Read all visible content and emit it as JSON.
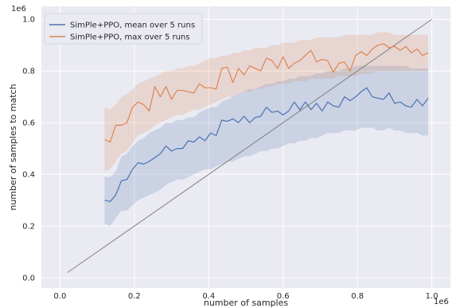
{
  "chart_data": {
    "type": "line",
    "xlabel": "number of samples",
    "ylabel": "number of samples to match",
    "x_offset_text": "1e6",
    "y_offset_text": "1e6",
    "xlim": [
      -0.05,
      1.05
    ],
    "ylim": [
      -0.04,
      1.05
    ],
    "x_ticks": [
      0.0,
      0.2,
      0.4,
      0.6,
      0.8,
      1.0
    ],
    "x_tick_labels": [
      "0.0",
      "0.2",
      "0.4",
      "0.6",
      "0.8",
      "1.0"
    ],
    "y_ticks": [
      0.0,
      0.2,
      0.4,
      0.6,
      0.8,
      1.0
    ],
    "y_tick_labels": [
      "0.0",
      "0.2",
      "0.4",
      "0.6",
      "0.8",
      "1.0"
    ],
    "grid": true,
    "legend_position": "top-left",
    "diagonal": {
      "x": [
        0.02,
        1.0
      ],
      "y": [
        0.02,
        1.0
      ],
      "color": "#808080"
    },
    "series": [
      {
        "name": "SimPle+PPO, mean over 5 runs",
        "color": "#4c72b0",
        "x": [
          0.12,
          0.135,
          0.15,
          0.165,
          0.18,
          0.195,
          0.21,
          0.225,
          0.24,
          0.255,
          0.27,
          0.285,
          0.3,
          0.315,
          0.33,
          0.345,
          0.36,
          0.375,
          0.39,
          0.405,
          0.42,
          0.435,
          0.45,
          0.465,
          0.48,
          0.495,
          0.51,
          0.525,
          0.54,
          0.555,
          0.57,
          0.585,
          0.6,
          0.615,
          0.63,
          0.645,
          0.66,
          0.675,
          0.69,
          0.705,
          0.72,
          0.735,
          0.75,
          0.765,
          0.78,
          0.795,
          0.81,
          0.825,
          0.84,
          0.855,
          0.87,
          0.885,
          0.9,
          0.915,
          0.93,
          0.945,
          0.96,
          0.975,
          0.99
        ],
        "y": [
          0.3,
          0.295,
          0.32,
          0.375,
          0.38,
          0.42,
          0.445,
          0.44,
          0.45,
          0.465,
          0.48,
          0.51,
          0.49,
          0.5,
          0.5,
          0.53,
          0.525,
          0.545,
          0.53,
          0.56,
          0.55,
          0.61,
          0.605,
          0.615,
          0.6,
          0.625,
          0.6,
          0.62,
          0.625,
          0.66,
          0.64,
          0.645,
          0.63,
          0.645,
          0.68,
          0.65,
          0.68,
          0.65,
          0.675,
          0.645,
          0.68,
          0.665,
          0.66,
          0.7,
          0.685,
          0.7,
          0.72,
          0.735,
          0.7,
          0.695,
          0.69,
          0.715,
          0.675,
          0.68,
          0.665,
          0.66,
          0.69,
          0.665,
          0.695
        ],
        "band_low": [
          0.21,
          0.2,
          0.23,
          0.26,
          0.26,
          0.28,
          0.3,
          0.31,
          0.32,
          0.33,
          0.34,
          0.36,
          0.37,
          0.38,
          0.38,
          0.39,
          0.4,
          0.41,
          0.42,
          0.42,
          0.43,
          0.44,
          0.45,
          0.45,
          0.46,
          0.47,
          0.47,
          0.48,
          0.49,
          0.49,
          0.5,
          0.5,
          0.51,
          0.52,
          0.52,
          0.53,
          0.53,
          0.54,
          0.54,
          0.55,
          0.56,
          0.56,
          0.56,
          0.57,
          0.57,
          0.57,
          0.58,
          0.58,
          0.58,
          0.57,
          0.57,
          0.58,
          0.57,
          0.57,
          0.56,
          0.56,
          0.56,
          0.55,
          0.55
        ],
        "band_high": [
          0.39,
          0.39,
          0.41,
          0.47,
          0.48,
          0.51,
          0.53,
          0.54,
          0.56,
          0.57,
          0.58,
          0.6,
          0.6,
          0.61,
          0.61,
          0.62,
          0.62,
          0.64,
          0.65,
          0.66,
          0.66,
          0.68,
          0.69,
          0.7,
          0.71,
          0.72,
          0.73,
          0.73,
          0.74,
          0.75,
          0.75,
          0.76,
          0.76,
          0.77,
          0.77,
          0.78,
          0.78,
          0.78,
          0.79,
          0.79,
          0.8,
          0.8,
          0.8,
          0.81,
          0.81,
          0.82,
          0.82,
          0.82,
          0.82,
          0.82,
          0.82,
          0.82,
          0.82,
          0.82,
          0.82,
          0.81,
          0.81,
          0.81,
          0.81
        ]
      },
      {
        "name": "SimPle+PPO, max over 5 runs",
        "color": "#dd8452",
        "x": [
          0.12,
          0.135,
          0.15,
          0.165,
          0.18,
          0.195,
          0.21,
          0.225,
          0.24,
          0.255,
          0.27,
          0.285,
          0.3,
          0.315,
          0.33,
          0.345,
          0.36,
          0.375,
          0.39,
          0.405,
          0.42,
          0.435,
          0.45,
          0.465,
          0.48,
          0.495,
          0.51,
          0.525,
          0.54,
          0.555,
          0.57,
          0.585,
          0.6,
          0.615,
          0.63,
          0.645,
          0.66,
          0.675,
          0.69,
          0.705,
          0.72,
          0.735,
          0.75,
          0.765,
          0.78,
          0.795,
          0.81,
          0.825,
          0.84,
          0.855,
          0.87,
          0.885,
          0.9,
          0.915,
          0.93,
          0.945,
          0.96,
          0.975,
          0.99
        ],
        "y": [
          0.535,
          0.525,
          0.59,
          0.59,
          0.6,
          0.66,
          0.68,
          0.67,
          0.645,
          0.74,
          0.7,
          0.74,
          0.69,
          0.725,
          0.725,
          0.72,
          0.715,
          0.75,
          0.735,
          0.735,
          0.73,
          0.81,
          0.815,
          0.755,
          0.81,
          0.785,
          0.82,
          0.81,
          0.8,
          0.85,
          0.84,
          0.81,
          0.855,
          0.81,
          0.83,
          0.84,
          0.86,
          0.88,
          0.835,
          0.845,
          0.84,
          0.795,
          0.83,
          0.835,
          0.8,
          0.86,
          0.875,
          0.86,
          0.885,
          0.9,
          0.905,
          0.89,
          0.895,
          0.88,
          0.895,
          0.87,
          0.885,
          0.86,
          0.87
        ],
        "band_low": [
          0.41,
          0.42,
          0.45,
          0.48,
          0.49,
          0.52,
          0.55,
          0.56,
          0.57,
          0.59,
          0.6,
          0.61,
          0.62,
          0.63,
          0.63,
          0.64,
          0.65,
          0.65,
          0.66,
          0.67,
          0.68,
          0.69,
          0.7,
          0.7,
          0.71,
          0.72,
          0.72,
          0.73,
          0.73,
          0.74,
          0.74,
          0.75,
          0.75,
          0.75,
          0.76,
          0.76,
          0.76,
          0.77,
          0.77,
          0.77,
          0.77,
          0.77,
          0.78,
          0.78,
          0.78,
          0.78,
          0.79,
          0.79,
          0.79,
          0.8,
          0.8,
          0.8,
          0.8,
          0.8,
          0.8,
          0.8,
          0.8,
          0.8,
          0.8
        ],
        "band_high": [
          0.66,
          0.65,
          0.67,
          0.7,
          0.71,
          0.73,
          0.75,
          0.76,
          0.77,
          0.78,
          0.79,
          0.8,
          0.8,
          0.81,
          0.81,
          0.82,
          0.82,
          0.83,
          0.84,
          0.85,
          0.85,
          0.86,
          0.86,
          0.87,
          0.87,
          0.88,
          0.88,
          0.89,
          0.89,
          0.89,
          0.9,
          0.9,
          0.91,
          0.91,
          0.91,
          0.92,
          0.92,
          0.92,
          0.93,
          0.93,
          0.93,
          0.93,
          0.93,
          0.94,
          0.94,
          0.94,
          0.94,
          0.94,
          0.94,
          0.95,
          0.95,
          0.95,
          0.94,
          0.94,
          0.94,
          0.94,
          0.94,
          0.94,
          0.94
        ]
      }
    ]
  }
}
